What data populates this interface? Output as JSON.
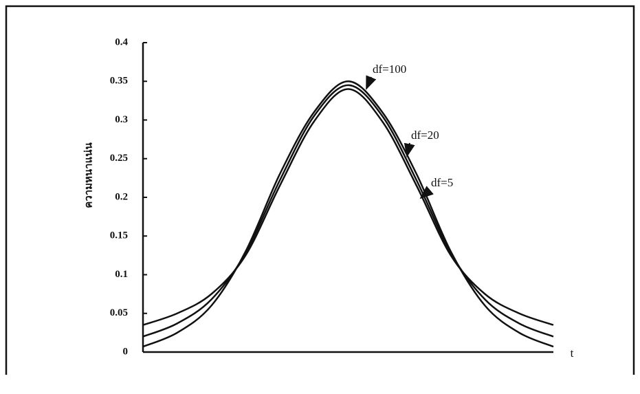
{
  "chart_data": {
    "type": "line",
    "y_label": "ความหนาแน่น",
    "x_label": "t",
    "x": [
      -3,
      -2.5,
      -2,
      -1.5,
      -1,
      -0.5,
      0,
      0.5,
      1,
      1.5,
      2,
      2.5,
      3
    ],
    "xlim": [
      -3,
      3
    ],
    "ylim": [
      0,
      0.4
    ],
    "yticks": [
      0,
      0.05,
      0.1,
      0.15,
      0.2,
      0.25,
      0.3,
      0.35,
      0.4
    ],
    "series": [
      {
        "name": "df=100",
        "color": "#111111",
        "values": [
          0.007,
          0.025,
          0.06,
          0.13,
          0.23,
          0.31,
          0.35,
          0.31,
          0.23,
          0.13,
          0.06,
          0.025,
          0.007
        ]
      },
      {
        "name": "df=20",
        "color": "#111111",
        "values": [
          0.02,
          0.037,
          0.068,
          0.128,
          0.222,
          0.305,
          0.345,
          0.305,
          0.222,
          0.128,
          0.068,
          0.037,
          0.02
        ]
      },
      {
        "name": "df=5",
        "color": "#111111",
        "values": [
          0.035,
          0.05,
          0.075,
          0.125,
          0.215,
          0.298,
          0.34,
          0.298,
          0.215,
          0.125,
          0.075,
          0.05,
          0.035
        ]
      }
    ]
  }
}
